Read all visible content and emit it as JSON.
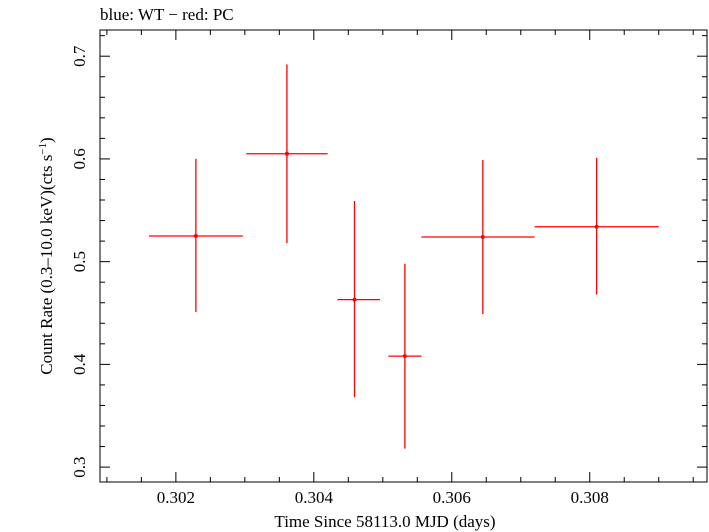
{
  "chart_data": {
    "type": "scatter",
    "title": "blue: WT − red: PC",
    "xlabel": "Time Since 58113.0 MJD (days)",
    "ylabel_main": "Count Rate (0.3–10.0 keV)(cts s",
    "ylabel_sup": "−1",
    "ylabel_end": ")",
    "xlim": [
      0.3009,
      0.3097
    ],
    "ylim": [
      0.2855,
      0.7255
    ],
    "xticks": [
      0.302,
      0.304,
      0.306,
      0.308
    ],
    "xtick_labels": [
      "0.302",
      "0.304",
      "0.306",
      "0.308"
    ],
    "yticks": [
      0.3,
      0.4,
      0.5,
      0.6,
      0.7
    ],
    "ytick_labels": [
      "0.3",
      "0.4",
      "0.5",
      "0.6",
      "0.7"
    ],
    "grid": false,
    "series": [
      {
        "color": "#ff0000",
        "points": [
          {
            "x": 0.30229,
            "xerr_lo": 0.00068,
            "xerr_hi": 0.00068,
            "y": 0.525,
            "yerr_lo": 0.074,
            "yerr_hi": 0.075
          },
          {
            "x": 0.30361,
            "xerr_lo": 0.00059,
            "xerr_hi": 0.00059,
            "y": 0.605,
            "yerr_lo": 0.087,
            "yerr_hi": 0.087
          },
          {
            "x": 0.30459,
            "xerr_lo": 0.00025,
            "xerr_hi": 0.00037,
            "y": 0.463,
            "yerr_lo": 0.095,
            "yerr_hi": 0.096
          },
          {
            "x": 0.30532,
            "xerr_lo": 0.00024,
            "xerr_hi": 0.00024,
            "y": 0.408,
            "yerr_lo": 0.09,
            "yerr_hi": 0.09
          },
          {
            "x": 0.30645,
            "xerr_lo": 0.00089,
            "xerr_hi": 0.00075,
            "y": 0.524,
            "yerr_lo": 0.075,
            "yerr_hi": 0.075
          },
          {
            "x": 0.3081,
            "xerr_lo": 0.0009,
            "xerr_hi": 0.0009,
            "y": 0.534,
            "yerr_lo": 0.066,
            "yerr_hi": 0.067
          }
        ]
      }
    ]
  }
}
